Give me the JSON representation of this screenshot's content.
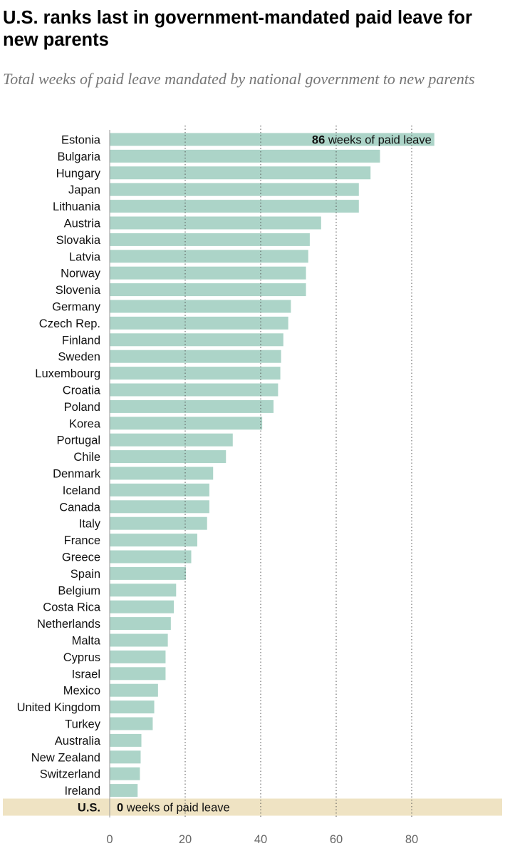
{
  "header": {
    "title": "U.S. ranks last in government-mandated paid leave for new parents",
    "subtitle": "Total weeks of paid leave mandated by national government to new parents"
  },
  "colors": {
    "bar": "#acd4c8",
    "highlight_band": "#efe3c3",
    "gridline": "#555555",
    "axis": "#999999"
  },
  "chart_data": {
    "type": "bar",
    "orientation": "horizontal",
    "categories": [
      "Estonia",
      "Bulgaria",
      "Hungary",
      "Japan",
      "Lithuania",
      "Austria",
      "Slovakia",
      "Latvia",
      "Norway",
      "Slovenia",
      "Germany",
      "Czech Rep.",
      "Finland",
      "Sweden",
      "Luxembourg",
      "Croatia",
      "Poland",
      "Korea",
      "Portugal",
      "Chile",
      "Denmark",
      "Iceland",
      "Canada",
      "Italy",
      "France",
      "Greece",
      "Spain",
      "Belgium",
      "Costa Rica",
      "Netherlands",
      "Malta",
      "Cyprus",
      "Israel",
      "Mexico",
      "United Kingdom",
      "Turkey",
      "Australia",
      "New Zealand",
      "Switzerland",
      "Ireland",
      "U.S."
    ],
    "values": [
      86,
      71.6,
      69.1,
      66,
      66,
      56,
      53,
      52.6,
      52,
      52,
      48,
      47.3,
      46,
      45.4,
      45.2,
      44.6,
      43.4,
      40.4,
      32.6,
      30.8,
      27.4,
      26.4,
      26.4,
      25.8,
      23.2,
      21.6,
      20.2,
      17.6,
      17,
      16.2,
      15.4,
      14.8,
      14.8,
      12.8,
      11.8,
      11.4,
      8.4,
      8.2,
      8,
      7.4,
      0
    ],
    "xlim": [
      0,
      100
    ],
    "xticks": [
      0,
      20,
      40,
      60,
      80
    ],
    "xtick_labels": [
      "0",
      "20",
      "40",
      "60",
      "80"
    ],
    "grid": "vertical dotted gridlines at 20, 40, 60, 80",
    "highlight": "U.S.",
    "annotations": {
      "top": {
        "value": "86",
        "text": " weeks of paid leave"
      },
      "us": {
        "value": "0",
        "text": " weeks of paid leave"
      }
    }
  }
}
